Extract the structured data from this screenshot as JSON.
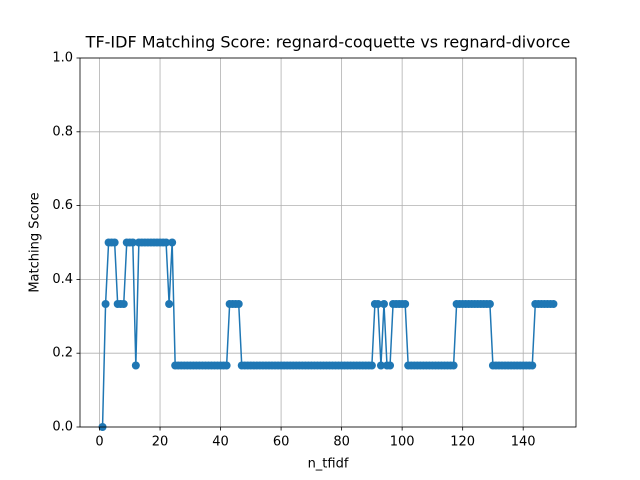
{
  "chart_data": {
    "type": "line",
    "title": "TF-IDF Matching Score: regnard-coquette vs regnard-divorce",
    "xlabel": "n_tfidf",
    "ylabel": "Matching Score",
    "color": "#1f77b4",
    "grid": true,
    "xlim": [
      -6.45,
      157.45
    ],
    "ylim": [
      0,
      1
    ],
    "xticks": [
      0,
      20,
      40,
      60,
      80,
      100,
      120,
      140
    ],
    "yticks": [
      {
        "value": 0,
        "label": "0.0"
      },
      {
        "value": 0.2,
        "label": "0.2"
      },
      {
        "value": 0.4,
        "label": "0.4"
      },
      {
        "value": 0.6,
        "label": "0.6"
      },
      {
        "value": 0.8,
        "label": "0.8"
      },
      {
        "value": 1,
        "label": "1.0"
      }
    ],
    "x": [
      1,
      2,
      3,
      4,
      5,
      6,
      7,
      8,
      9,
      10,
      11,
      12,
      13,
      14,
      15,
      16,
      17,
      18,
      19,
      20,
      21,
      22,
      23,
      24,
      25,
      26,
      27,
      28,
      29,
      30,
      31,
      32,
      33,
      34,
      35,
      36,
      37,
      38,
      39,
      40,
      41,
      42,
      43,
      44,
      45,
      46,
      47,
      48,
      49,
      50,
      51,
      52,
      53,
      54,
      55,
      56,
      57,
      58,
      59,
      60,
      61,
      62,
      63,
      64,
      65,
      66,
      67,
      68,
      69,
      70,
      71,
      72,
      73,
      74,
      75,
      76,
      77,
      78,
      79,
      80,
      81,
      82,
      83,
      84,
      85,
      86,
      87,
      88,
      89,
      90,
      91,
      92,
      93,
      94,
      95,
      96,
      97,
      98,
      99,
      100,
      101,
      102,
      103,
      104,
      105,
      106,
      107,
      108,
      109,
      110,
      111,
      112,
      113,
      114,
      115,
      116,
      117,
      118,
      119,
      120,
      121,
      122,
      123,
      124,
      125,
      126,
      127,
      128,
      129,
      130,
      131,
      132,
      133,
      134,
      135,
      136,
      137,
      138,
      139,
      140,
      141,
      142,
      143,
      144,
      145,
      146,
      147,
      148,
      149,
      150
    ],
    "values": [
      0,
      0.3333,
      0.5,
      0.5,
      0.5,
      0.3333,
      0.3333,
      0.3333,
      0.5,
      0.5,
      0.5,
      0.1667,
      0.5,
      0.5,
      0.5,
      0.5,
      0.5,
      0.5,
      0.5,
      0.5,
      0.5,
      0.5,
      0.3333,
      0.5,
      0.1667,
      0.1667,
      0.1667,
      0.1667,
      0.1667,
      0.1667,
      0.1667,
      0.1667,
      0.1667,
      0.1667,
      0.1667,
      0.1667,
      0.1667,
      0.1667,
      0.1667,
      0.1667,
      0.1667,
      0.1667,
      0.3333,
      0.3333,
      0.3333,
      0.3333,
      0.1667,
      0.1667,
      0.1667,
      0.1667,
      0.1667,
      0.1667,
      0.1667,
      0.1667,
      0.1667,
      0.1667,
      0.1667,
      0.1667,
      0.1667,
      0.1667,
      0.1667,
      0.1667,
      0.1667,
      0.1667,
      0.1667,
      0.1667,
      0.1667,
      0.1667,
      0.1667,
      0.1667,
      0.1667,
      0.1667,
      0.1667,
      0.1667,
      0.1667,
      0.1667,
      0.1667,
      0.1667,
      0.1667,
      0.1667,
      0.1667,
      0.1667,
      0.1667,
      0.1667,
      0.1667,
      0.1667,
      0.1667,
      0.1667,
      0.1667,
      0.1667,
      0.3333,
      0.3333,
      0.1667,
      0.3333,
      0.1667,
      0.1667,
      0.3333,
      0.3333,
      0.3333,
      0.3333,
      0.3333,
      0.1667,
      0.1667,
      0.1667,
      0.1667,
      0.1667,
      0.1667,
      0.1667,
      0.1667,
      0.1667,
      0.1667,
      0.1667,
      0.1667,
      0.1667,
      0.1667,
      0.1667,
      0.1667,
      0.3333,
      0.3333,
      0.3333,
      0.3333,
      0.3333,
      0.3333,
      0.3333,
      0.3333,
      0.3333,
      0.3333,
      0.3333,
      0.3333,
      0.1667,
      0.1667,
      0.1667,
      0.1667,
      0.1667,
      0.1667,
      0.1667,
      0.1667,
      0.1667,
      0.1667,
      0.1667,
      0.1667,
      0.1667,
      0.1667,
      0.3333,
      0.3333,
      0.3333,
      0.3333,
      0.3333,
      0.3333,
      0.3333
    ]
  }
}
